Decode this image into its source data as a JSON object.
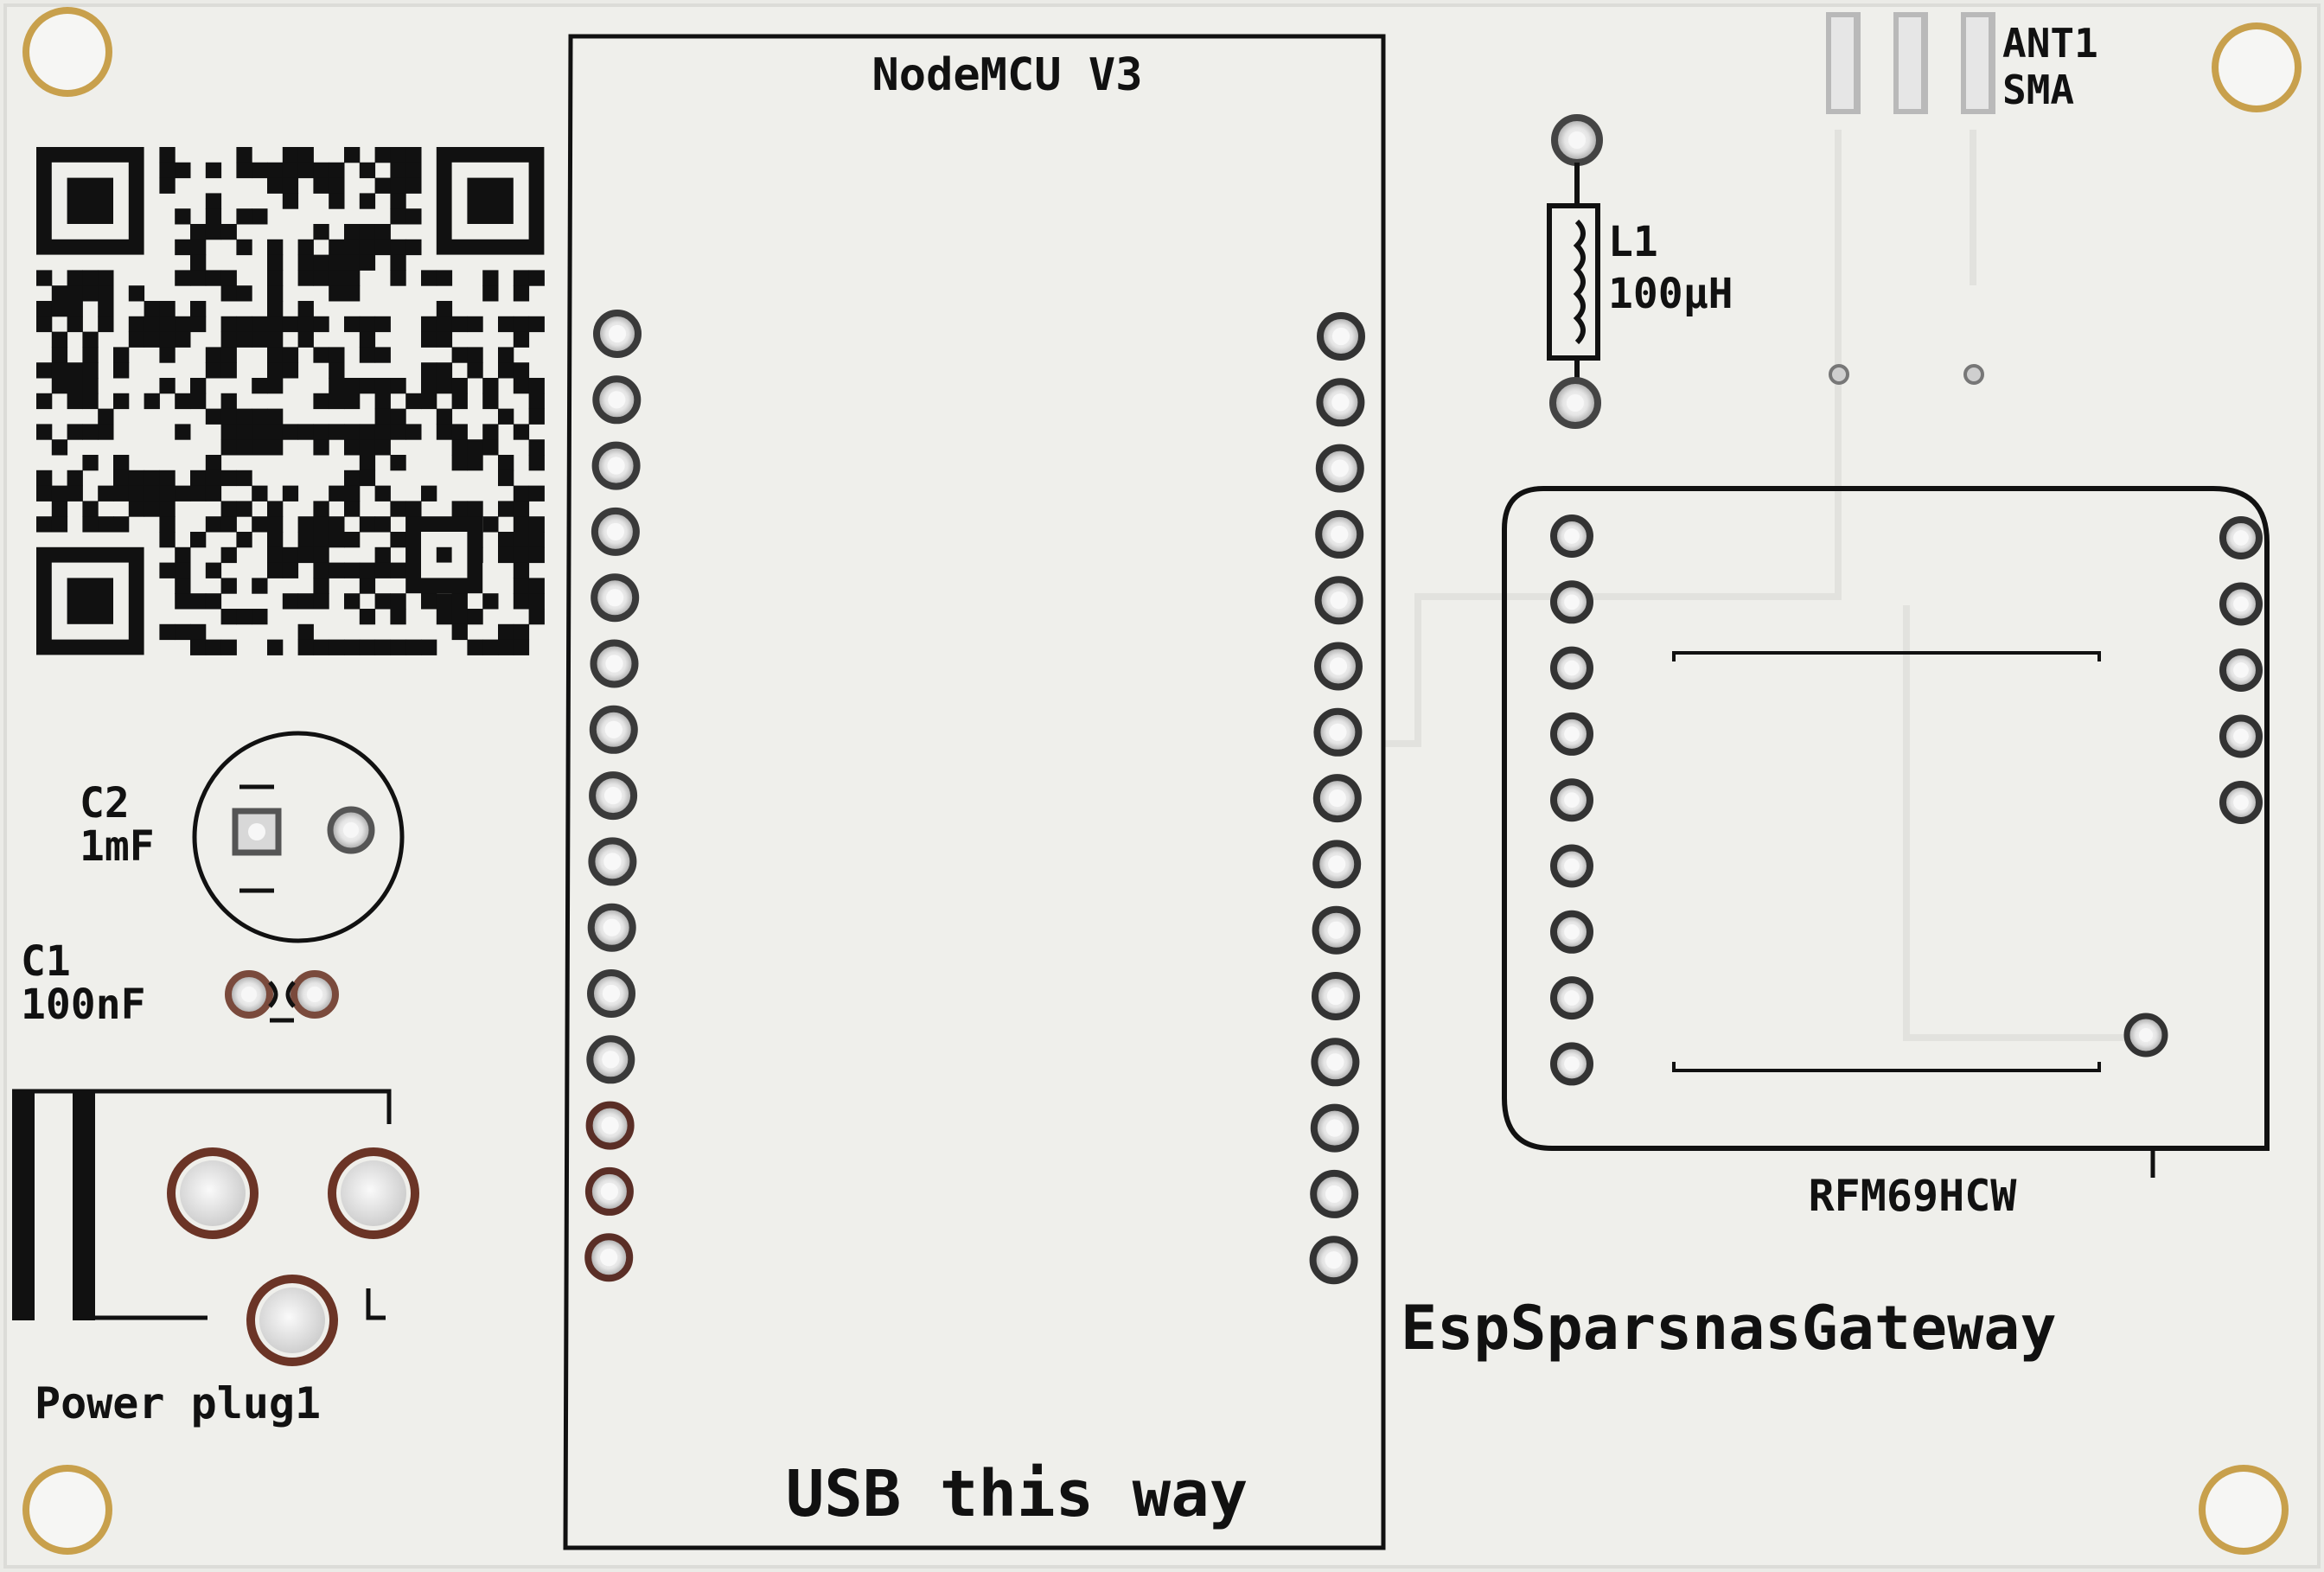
{
  "board_title": "EspSparsnasGateway",
  "nodemcu": {
    "label": "NodeMCU V3",
    "usb_note": "USB this way"
  },
  "rfm": {
    "label": "RFM69HCW"
  },
  "antenna": {
    "ref": "ANT1",
    "type": "SMA"
  },
  "inductor": {
    "ref": "L1",
    "value": "100µH"
  },
  "capacitor_c2": {
    "ref": "C2",
    "value": "1mF"
  },
  "capacitor_c1": {
    "ref": "C1",
    "value": "100nF"
  },
  "power": {
    "label": "Power plug1"
  },
  "colors": {
    "board": "#eeeeea",
    "silkscreen": "#111111",
    "copper_ring": "#8a4a3a",
    "mount_hole": "#c9a24a"
  }
}
